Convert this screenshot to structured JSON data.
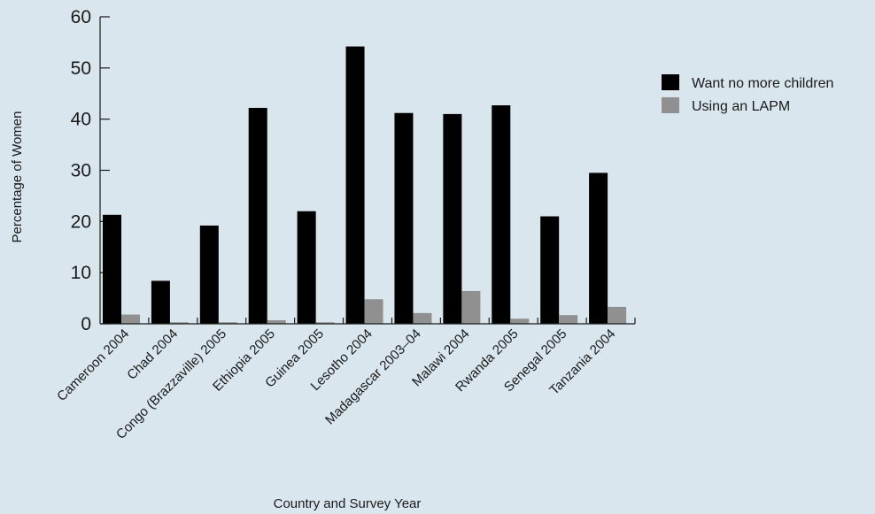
{
  "chart_data": {
    "type": "bar",
    "title": "",
    "xlabel": "Country and Survey Year",
    "ylabel": "Percentage of Women",
    "ylim": [
      0,
      60
    ],
    "yticks": [
      0,
      10,
      20,
      30,
      40,
      50,
      60
    ],
    "grid": false,
    "legend_position": "right",
    "categories": [
      "Cameroon 2004",
      "Chad 2004",
      "Congo (Brazzaville) 2005",
      "Ethiopia 2005",
      "Guinea 2005",
      "Lesotho 2004",
      "Madagascar 2003–04",
      "Malawi 2004",
      "Rwanda 2005",
      "Senegal 2005",
      "Tanzania 2004"
    ],
    "series": [
      {
        "name": "Want no more children",
        "color": "#000000",
        "values": [
          21.3,
          8.4,
          19.2,
          42.2,
          22.0,
          54.2,
          41.2,
          41.0,
          42.7,
          21.0,
          29.5
        ]
      },
      {
        "name": "Using an LAPM",
        "color": "#909090",
        "values": [
          1.8,
          0.3,
          0.3,
          0.7,
          0.3,
          4.8,
          2.1,
          6.4,
          1.0,
          1.7,
          3.3
        ]
      }
    ]
  }
}
